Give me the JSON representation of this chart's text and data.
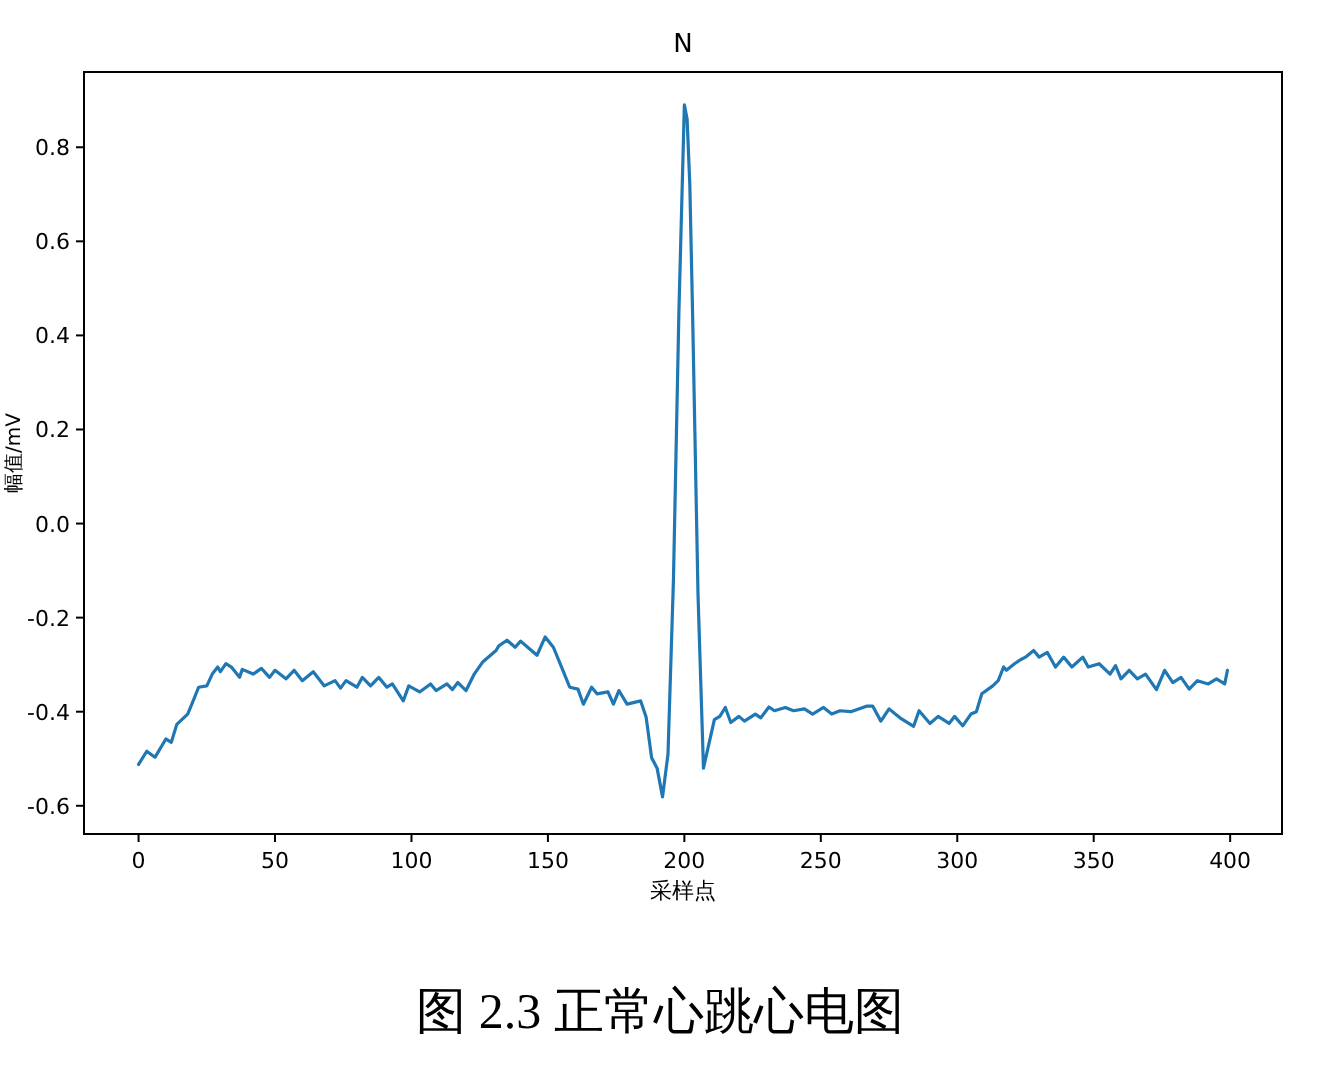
{
  "chart_data": {
    "type": "line",
    "title": "N",
    "xlabel": "采样点",
    "ylabel": "幅值/mV",
    "annotations": [
      "图 2.3 正常心跳心电图"
    ],
    "xlim": [
      -20,
      419
    ],
    "ylim": [
      -0.66,
      0.96
    ],
    "xticks": [
      0,
      50,
      100,
      150,
      200,
      250,
      300,
      350,
      400
    ],
    "yticks": [
      -0.6,
      -0.4,
      -0.2,
      {
        "value": 0,
        "label": "0.0"
      },
      0.2,
      0.4,
      0.6,
      0.8
    ],
    "grid": false,
    "marker": "none",
    "line_style": "solid",
    "series": [
      {
        "color": "#1f77b4",
        "x": [
          0,
          3,
          6,
          10,
          12,
          14,
          18,
          20,
          22,
          25,
          27,
          29,
          30,
          32,
          34,
          37,
          38,
          42,
          45,
          48,
          50,
          54,
          57,
          60,
          64,
          68,
          72,
          74,
          76,
          80,
          82,
          85,
          88,
          91,
          93,
          97,
          99,
          103,
          107,
          109,
          113,
          115,
          117,
          120,
          123,
          126,
          131,
          132,
          135,
          138,
          140,
          143,
          146,
          149,
          152,
          155,
          158,
          161,
          163,
          166,
          168,
          172,
          174,
          176,
          179,
          184,
          186,
          188,
          190,
          192,
          194,
          196,
          198,
          200,
          201,
          202,
          203,
          205,
          207,
          211,
          213,
          215,
          217,
          220,
          222,
          226,
          228,
          231,
          233,
          237,
          240,
          244,
          247,
          251,
          254,
          257,
          261,
          267,
          269,
          272,
          275,
          279,
          284,
          286,
          290,
          293,
          297,
          299,
          302,
          305,
          307,
          309,
          313,
          315,
          317,
          318,
          321,
          323,
          325,
          328,
          330,
          333,
          336,
          339,
          342,
          346,
          348,
          352,
          356,
          358,
          360,
          363,
          366,
          369,
          373,
          376,
          379,
          382,
          385,
          388,
          392,
          395,
          398,
          399
        ],
        "values": [
          -0.512,
          -0.484,
          -0.497,
          -0.458,
          -0.465,
          -0.427,
          -0.405,
          -0.377,
          -0.348,
          -0.345,
          -0.32,
          -0.305,
          -0.315,
          -0.298,
          -0.305,
          -0.327,
          -0.31,
          -0.32,
          -0.308,
          -0.327,
          -0.312,
          -0.33,
          -0.312,
          -0.334,
          -0.315,
          -0.345,
          -0.334,
          -0.35,
          -0.334,
          -0.348,
          -0.327,
          -0.345,
          -0.327,
          -0.348,
          -0.341,
          -0.377,
          -0.345,
          -0.358,
          -0.341,
          -0.355,
          -0.341,
          -0.353,
          -0.338,
          -0.355,
          -0.32,
          -0.295,
          -0.27,
          -0.26,
          -0.248,
          -0.263,
          -0.25,
          -0.265,
          -0.28,
          -0.241,
          -0.263,
          -0.305,
          -0.348,
          -0.352,
          -0.384,
          -0.348,
          -0.362,
          -0.358,
          -0.384,
          -0.355,
          -0.384,
          -0.377,
          -0.412,
          -0.498,
          -0.52,
          -0.581,
          -0.49,
          -0.12,
          0.45,
          0.89,
          0.86,
          0.72,
          0.45,
          -0.15,
          -0.52,
          -0.417,
          -0.41,
          -0.391,
          -0.423,
          -0.41,
          -0.42,
          -0.405,
          -0.413,
          -0.39,
          -0.398,
          -0.391,
          -0.398,
          -0.394,
          -0.405,
          -0.391,
          -0.405,
          -0.398,
          -0.4,
          -0.388,
          -0.388,
          -0.42,
          -0.394,
          -0.413,
          -0.431,
          -0.398,
          -0.425,
          -0.41,
          -0.425,
          -0.41,
          -0.43,
          -0.405,
          -0.4,
          -0.362,
          -0.345,
          -0.334,
          -0.305,
          -0.312,
          -0.298,
          -0.29,
          -0.284,
          -0.27,
          -0.284,
          -0.274,
          -0.305,
          -0.284,
          -0.305,
          -0.284,
          -0.305,
          -0.298,
          -0.32,
          -0.302,
          -0.33,
          -0.312,
          -0.33,
          -0.32,
          -0.353,
          -0.312,
          -0.338,
          -0.327,
          -0.352,
          -0.334,
          -0.341,
          -0.33,
          -0.341,
          -0.312
        ]
      }
    ]
  }
}
